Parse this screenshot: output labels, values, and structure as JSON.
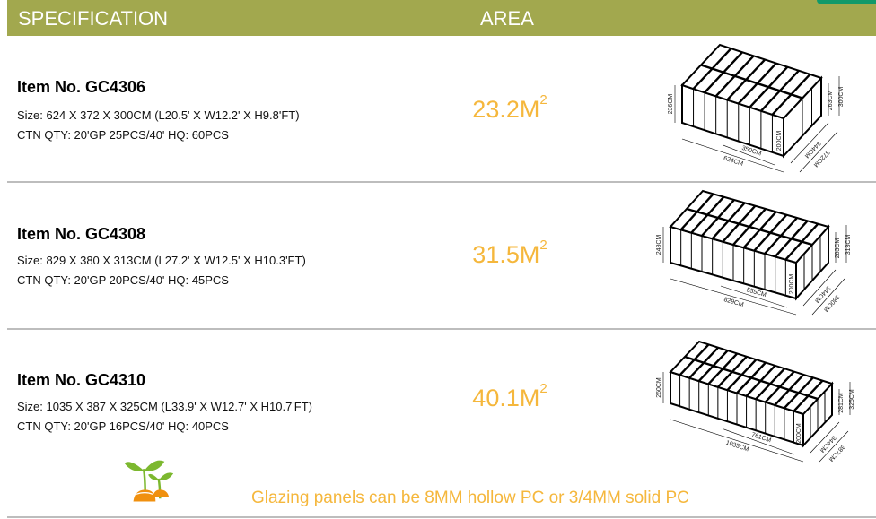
{
  "header": {
    "col1": "SPECIFICATION",
    "col2": "AREA"
  },
  "colors": {
    "header_bg": "#a2a84e",
    "accent": "#12996a",
    "area_text": "#f5b73c"
  },
  "items": [
    {
      "title": "Item No. GC4306",
      "size": "Size: 624 X 372 X 300CM (L20.5' X W12.2' X H9.8'FT)",
      "qty": "CTN QTY: 20'GP 25PCS/40'  HQ: 60PCS",
      "area": "23.2M",
      "area_sup": "2",
      "dims": {
        "h_left": "236CM",
        "h_door": "200CM",
        "h_mid": "263CM",
        "h_total": "300CM",
        "l_inner": "350CM",
        "l_total": "624CM",
        "w_inner": "344CM",
        "w_total": "372CM"
      }
    },
    {
      "title": "Item No. GC4308",
      "size": "Size: 829 X 380 X 313CM (L27.2' X W12.5' X H10.3'FT)",
      "qty": "CTN QTY: 20'GP 20PCS/40'  HQ: 45PCS",
      "area": "31.5M",
      "area_sup": "2",
      "dims": {
        "h_left": "248CM",
        "h_door": "200CM",
        "h_mid": "283CM",
        "h_total": "313CM",
        "l_inner": "555CM",
        "l_total": "829CM",
        "w_inner": "344CM",
        "w_total": "380CM"
      }
    },
    {
      "title": "Item No. GC4310",
      "size": "Size: 1035 X 387 X 325CM (L33.9' X W12.7' X H10.7'FT)",
      "qty": "CTN QTY: 20'GP 16PCS/40'  HQ: 40PCS",
      "area": "40.1M",
      "area_sup": "2",
      "dims": {
        "h_left": "260CM",
        "h_door": "200CM",
        "h_mid": "281CM",
        "h_total": "325CM",
        "l_inner": "761CM",
        "l_total": "1035CM",
        "w_inner": "344CM",
        "w_total": "387CM"
      }
    }
  ],
  "footer": {
    "note": "Glazing panels can be 8MM hollow PC or 3/4MM solid PC",
    "icon": "sprout-icon"
  }
}
